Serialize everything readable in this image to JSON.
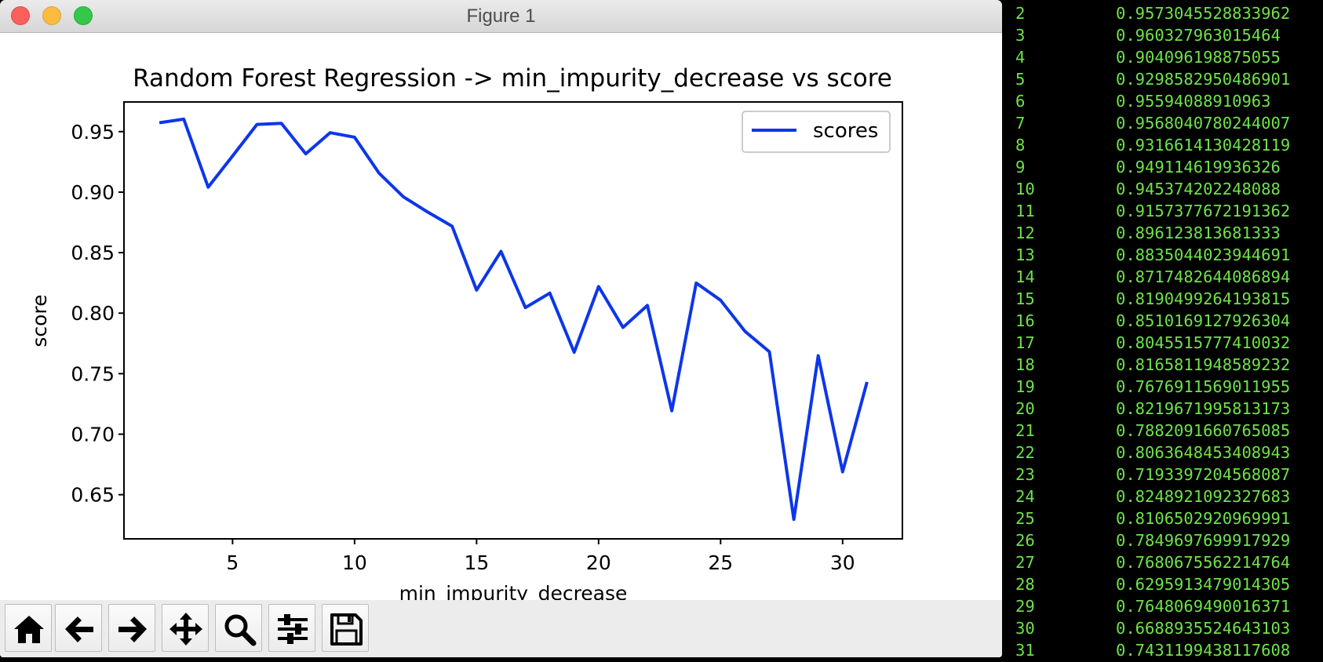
{
  "window": {
    "title": "Figure 1"
  },
  "toolbar": {
    "buttons": [
      {
        "name": "home",
        "icon": "home-icon"
      },
      {
        "name": "back",
        "icon": "arrow-left-icon"
      },
      {
        "name": "forward",
        "icon": "arrow-right-icon"
      },
      {
        "name": "pan",
        "icon": "move-icon"
      },
      {
        "name": "zoom",
        "icon": "search-icon"
      },
      {
        "name": "configure-subplots",
        "icon": "sliders-icon"
      },
      {
        "name": "save",
        "icon": "save-icon"
      }
    ]
  },
  "colors": {
    "series": "#0d36ea",
    "terminal_text": "#6fe24a",
    "terminal_background": "#000000",
    "close": "#fc605c",
    "minimize": "#fdbc40",
    "zoom": "#34c84a"
  },
  "chart_data": {
    "type": "line",
    "title": "Random Forest Regression -> min_impurity_decrease vs score",
    "xlabel": "min_impurity_decrease",
    "ylabel": "score",
    "xlim": [
      0.55,
      32.45
    ],
    "ylim": [
      0.6135,
      0.9745
    ],
    "xticks": [
      5,
      10,
      15,
      20,
      25,
      30
    ],
    "xtick_labels": [
      "5",
      "10",
      "15",
      "20",
      "25",
      "30"
    ],
    "yticks": [
      0.65,
      0.7,
      0.75,
      0.8,
      0.85,
      0.9,
      0.95
    ],
    "ytick_labels": [
      "0.65",
      "0.70",
      "0.75",
      "0.80",
      "0.85",
      "0.90",
      "0.95"
    ],
    "grid": false,
    "legend_position": "top-right",
    "series": [
      {
        "name": "scores",
        "x": [
          2,
          3,
          4,
          5,
          6,
          7,
          8,
          9,
          10,
          11,
          12,
          13,
          14,
          15,
          16,
          17,
          18,
          19,
          20,
          21,
          22,
          23,
          24,
          25,
          26,
          27,
          28,
          29,
          30,
          31
        ],
        "y": [
          0.9573045528833962,
          0.960327963015464,
          0.904096198875055,
          0.9298582950486901,
          0.95594088910963,
          0.9568040780244007,
          0.9316614130428119,
          0.949114619936326,
          0.945374202248088,
          0.9157377672191362,
          0.896123813681333,
          0.8835044023944691,
          0.8717482644086894,
          0.8190499264193815,
          0.8510169127926304,
          0.8045515777410032,
          0.8165811948589232,
          0.7676911569011955,
          0.8219671995813173,
          0.7882091660765085,
          0.8063648453408943,
          0.7193397204568087,
          0.8248921092327683,
          0.8106502920969991,
          0.7849697699917929,
          0.7680675562214764,
          0.6295913479014305,
          0.7648069490016371,
          0.6688935524643103,
          0.7431199438117608
        ]
      }
    ]
  },
  "terminal": {
    "lines": [
      {
        "n": "2",
        "v": "0.9573045528833962"
      },
      {
        "n": "3",
        "v": "0.960327963015464"
      },
      {
        "n": "4",
        "v": "0.904096198875055"
      },
      {
        "n": "5",
        "v": "0.9298582950486901"
      },
      {
        "n": "6",
        "v": "0.95594088910963"
      },
      {
        "n": "7",
        "v": "0.9568040780244007"
      },
      {
        "n": "8",
        "v": "0.9316614130428119"
      },
      {
        "n": "9",
        "v": "0.949114619936326"
      },
      {
        "n": "10",
        "v": "0.945374202248088"
      },
      {
        "n": "11",
        "v": "0.9157377672191362"
      },
      {
        "n": "12",
        "v": "0.896123813681333"
      },
      {
        "n": "13",
        "v": "0.8835044023944691"
      },
      {
        "n": "14",
        "v": "0.8717482644086894"
      },
      {
        "n": "15",
        "v": "0.8190499264193815"
      },
      {
        "n": "16",
        "v": "0.8510169127926304"
      },
      {
        "n": "17",
        "v": "0.8045515777410032"
      },
      {
        "n": "18",
        "v": "0.8165811948589232"
      },
      {
        "n": "19",
        "v": "0.7676911569011955"
      },
      {
        "n": "20",
        "v": "0.8219671995813173"
      },
      {
        "n": "21",
        "v": "0.7882091660765085"
      },
      {
        "n": "22",
        "v": "0.8063648453408943"
      },
      {
        "n": "23",
        "v": "0.7193397204568087"
      },
      {
        "n": "24",
        "v": "0.8248921092327683"
      },
      {
        "n": "25",
        "v": "0.8106502920969991"
      },
      {
        "n": "26",
        "v": "0.7849697699917929"
      },
      {
        "n": "27",
        "v": "0.7680675562214764"
      },
      {
        "n": "28",
        "v": "0.6295913479014305"
      },
      {
        "n": "29",
        "v": "0.7648069490016371"
      },
      {
        "n": "30",
        "v": "0.6688935524643103"
      },
      {
        "n": "31",
        "v": "0.7431199438117608"
      }
    ]
  }
}
